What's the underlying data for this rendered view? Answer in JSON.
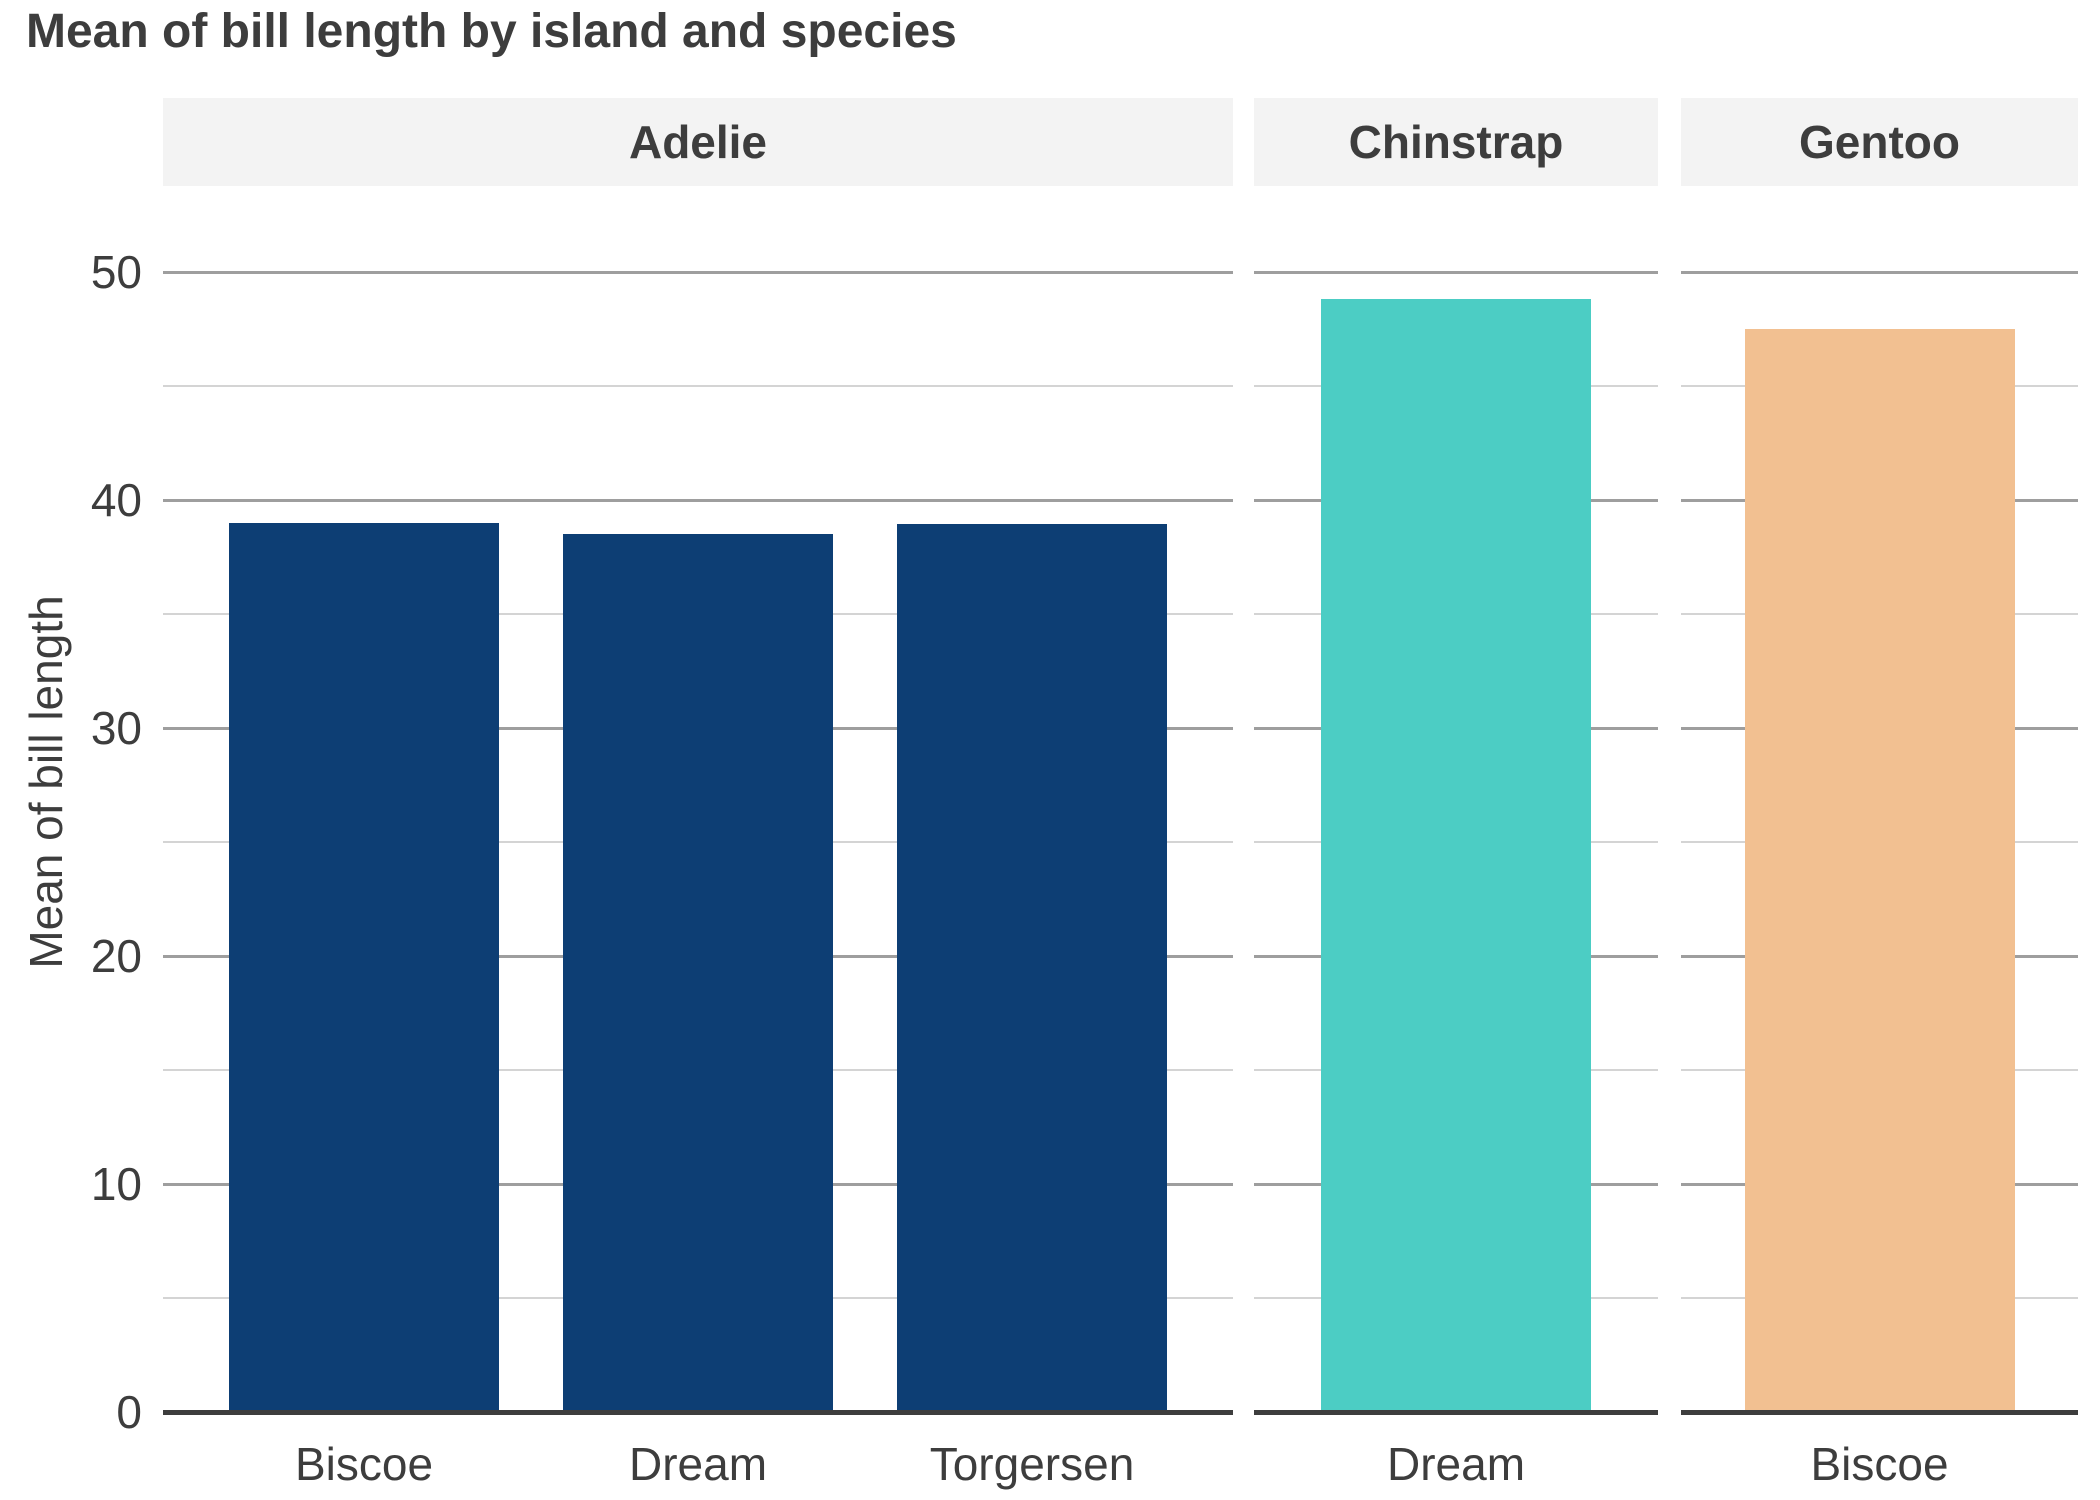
{
  "chart_data": {
    "type": "bar",
    "title": "Mean of bill length by island and species",
    "ylabel": "Mean of bill length",
    "xlabel": "",
    "ylim": [
      0,
      53.5
    ],
    "yticks_major": [
      0,
      10,
      20,
      30,
      40,
      50
    ],
    "yticks_minor": [
      5,
      15,
      25,
      35,
      45
    ],
    "grid": "horizontal, major and minor lines, no vertical grid",
    "legend": "none",
    "facets": [
      {
        "label": "Adelie",
        "color": "#0d3e74",
        "categories": [
          "Biscoe",
          "Dream",
          "Torgersen"
        ],
        "values": [
          38.98,
          38.5,
          38.95
        ]
      },
      {
        "label": "Chinstrap",
        "color": "#4ccdc4",
        "categories": [
          "Dream"
        ],
        "values": [
          48.83
        ]
      },
      {
        "label": "Gentoo",
        "color": "#f2c091",
        "categories": [
          "Biscoe"
        ],
        "values": [
          47.5
        ]
      }
    ]
  },
  "style": {
    "background": "#ffffff",
    "text_color": "#3d3d3d",
    "strip_bg": "#f3f3f3",
    "grid_major_color": "#9e9e9e",
    "grid_minor_color": "#d4d4d4",
    "axis_line_color": "#3d3d3d"
  }
}
